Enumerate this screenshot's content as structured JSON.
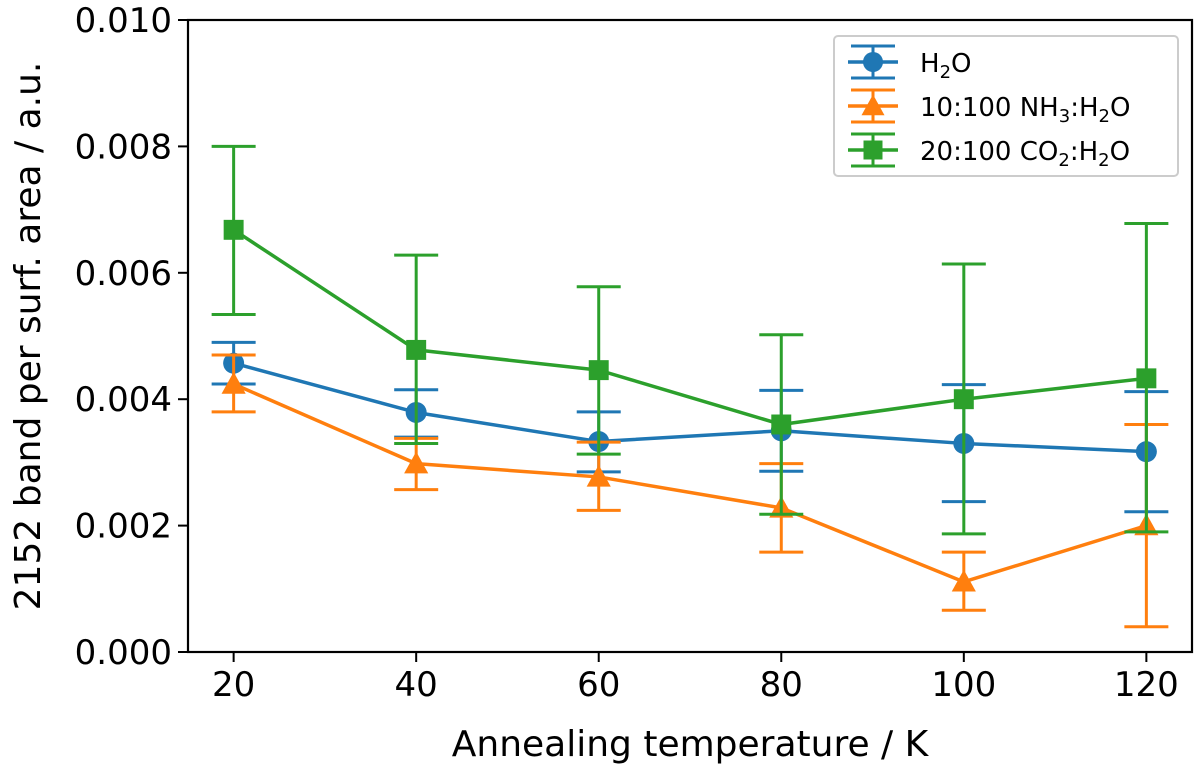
{
  "chart_data": {
    "type": "line",
    "xlabel": "Annealing temperature / K",
    "ylabel": "2152 band per surf. area / a.u.",
    "xlim": [
      15,
      125
    ],
    "ylim": [
      0.0,
      0.01
    ],
    "x_ticks": [
      20,
      40,
      60,
      80,
      100,
      120
    ],
    "x_tick_labels": [
      "20",
      "40",
      "60",
      "80",
      "100",
      "120"
    ],
    "y_ticks": [
      0.0,
      0.002,
      0.004,
      0.006,
      0.008,
      0.01
    ],
    "y_tick_labels": [
      "0.000",
      "0.002",
      "0.004",
      "0.006",
      "0.008",
      "0.010"
    ],
    "grid": false,
    "legend_position": "top-right",
    "x": [
      20,
      40,
      60,
      80,
      100,
      120
    ],
    "series": [
      {
        "name": "H2O",
        "legend_parts": [
          [
            "H",
            ""
          ],
          [
            "2",
            "sub"
          ],
          [
            "O",
            ""
          ]
        ],
        "color": "#1f77b4",
        "marker": "circle",
        "values": [
          0.00457,
          0.00379,
          0.00333,
          0.0035,
          0.0033,
          0.00317
        ],
        "err_low": [
          0.00424,
          0.0034,
          0.00285,
          0.00286,
          0.00238,
          0.00222
        ],
        "err_high": [
          0.0049,
          0.00415,
          0.0038,
          0.00414,
          0.00423,
          0.00412
        ]
      },
      {
        "name": "10:100 NH3:H2O",
        "legend_parts": [
          [
            "10:100 NH",
            ""
          ],
          [
            "3",
            "sub"
          ],
          [
            ":H",
            ""
          ],
          [
            "2",
            "sub"
          ],
          [
            "O",
            ""
          ]
        ],
        "color": "#ff7f0e",
        "marker": "triangle",
        "values": [
          0.00424,
          0.00298,
          0.00277,
          0.00228,
          0.00111,
          0.002
        ],
        "err_low": [
          0.0038,
          0.00257,
          0.00224,
          0.00158,
          0.00066,
          0.0004
        ],
        "err_high": [
          0.0047,
          0.00338,
          0.00332,
          0.00298,
          0.00158,
          0.0036
        ]
      },
      {
        "name": "20:100 CO2:H2O",
        "legend_parts": [
          [
            "20:100 CO",
            ""
          ],
          [
            "2",
            "sub"
          ],
          [
            ":H",
            ""
          ],
          [
            "2",
            "sub"
          ],
          [
            "O",
            ""
          ]
        ],
        "color": "#2ca02c",
        "marker": "square",
        "values": [
          0.00668,
          0.00478,
          0.00446,
          0.0036,
          0.004,
          0.00433
        ],
        "err_low": [
          0.00534,
          0.0033,
          0.00313,
          0.00218,
          0.00187,
          0.0019
        ],
        "err_high": [
          0.008,
          0.00628,
          0.00578,
          0.00502,
          0.00614,
          0.00678
        ]
      }
    ]
  }
}
